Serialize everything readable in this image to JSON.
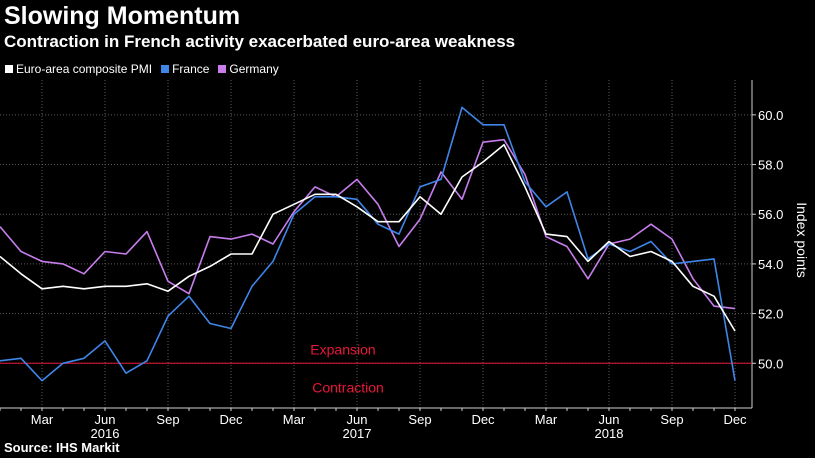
{
  "header": {
    "title": "Slowing Momentum",
    "subtitle": "Contraction in French activity exacerbated euro-area weakness"
  },
  "source": "Source: IHS Markit",
  "chart_data": {
    "type": "line",
    "ylabel": "Index points",
    "ylim": [
      48.2,
      61.0
    ],
    "yticks": [
      50.0,
      52.0,
      54.0,
      56.0,
      58.0,
      60.0
    ],
    "ytick_labels": [
      "50.0",
      "52.0",
      "54.0",
      "56.0",
      "58.0",
      "60.0"
    ],
    "x_start": "2016-01",
    "x_months": [
      "2016-01",
      "2016-02",
      "2016-03",
      "2016-04",
      "2016-05",
      "2016-06",
      "2016-07",
      "2016-08",
      "2016-09",
      "2016-10",
      "2016-11",
      "2016-12",
      "2017-01",
      "2017-02",
      "2017-03",
      "2017-04",
      "2017-05",
      "2017-06",
      "2017-07",
      "2017-08",
      "2017-09",
      "2017-10",
      "2017-11",
      "2017-12",
      "2018-01",
      "2018-02",
      "2018-03",
      "2018-04",
      "2018-05",
      "2018-06",
      "2018-07",
      "2018-08",
      "2018-09",
      "2018-10",
      "2018-11",
      "2018-12"
    ],
    "x_tick_labels": [
      {
        "month": "2016-03",
        "label": "Mar"
      },
      {
        "month": "2016-06",
        "label": "Jun"
      },
      {
        "month": "2016-09",
        "label": "Sep"
      },
      {
        "month": "2016-12",
        "label": "Dec"
      },
      {
        "month": "2017-03",
        "label": "Mar"
      },
      {
        "month": "2017-06",
        "label": "Jun"
      },
      {
        "month": "2017-09",
        "label": "Sep"
      },
      {
        "month": "2017-12",
        "label": "Dec"
      },
      {
        "month": "2018-03",
        "label": "Mar"
      },
      {
        "month": "2018-06",
        "label": "Jun"
      },
      {
        "month": "2018-09",
        "label": "Sep"
      },
      {
        "month": "2018-12",
        "label": "Dec"
      }
    ],
    "year_labels": [
      {
        "month": "2016-06",
        "label": "2016"
      },
      {
        "month": "2017-06",
        "label": "2017"
      },
      {
        "month": "2018-06",
        "label": "2018"
      }
    ],
    "series": [
      {
        "name": "Euro-area composite PMI",
        "color": "#ffffff",
        "values": [
          54.3,
          53.6,
          53.0,
          53.1,
          53.0,
          53.1,
          53.1,
          53.2,
          52.9,
          53.5,
          53.9,
          54.4,
          54.4,
          56.0,
          56.4,
          56.8,
          56.8,
          56.3,
          55.7,
          55.7,
          56.7,
          56.0,
          57.5,
          58.1,
          58.8,
          57.1,
          55.2,
          55.1,
          54.1,
          54.9,
          54.3,
          54.5,
          54.1,
          53.1,
          52.7,
          51.3
        ]
      },
      {
        "name": "France",
        "color": "#3f86e8",
        "values": [
          50.1,
          50.2,
          49.3,
          50.0,
          50.2,
          50.9,
          49.6,
          50.1,
          51.9,
          52.7,
          51.6,
          51.4,
          53.1,
          54.1,
          56.0,
          56.7,
          56.7,
          56.6,
          55.6,
          55.2,
          57.1,
          57.4,
          60.3,
          59.6,
          59.6,
          57.3,
          56.3,
          56.9,
          54.2,
          54.8,
          54.5,
          54.9,
          54.0,
          54.1,
          54.2,
          49.3
        ]
      },
      {
        "name": "Germany",
        "color": "#c77dec",
        "values": [
          55.5,
          54.5,
          54.1,
          54.0,
          53.6,
          54.5,
          54.4,
          55.3,
          53.3,
          52.8,
          55.1,
          55.0,
          55.2,
          54.8,
          56.1,
          57.1,
          56.7,
          57.4,
          56.4,
          54.7,
          55.8,
          57.7,
          56.6,
          58.9,
          59.0,
          57.6,
          55.1,
          54.7,
          53.4,
          54.8,
          55.0,
          55.6,
          55.0,
          53.4,
          52.3,
          52.2
        ]
      }
    ],
    "annotations": [
      {
        "text": "Expansion",
        "color": "#e8163a"
      },
      {
        "text": "Contraction",
        "color": "#e8163a"
      }
    ],
    "reference_line": {
      "value": 50.0,
      "color": "#e8163a"
    },
    "grid": true,
    "legend_position": "top-left"
  }
}
